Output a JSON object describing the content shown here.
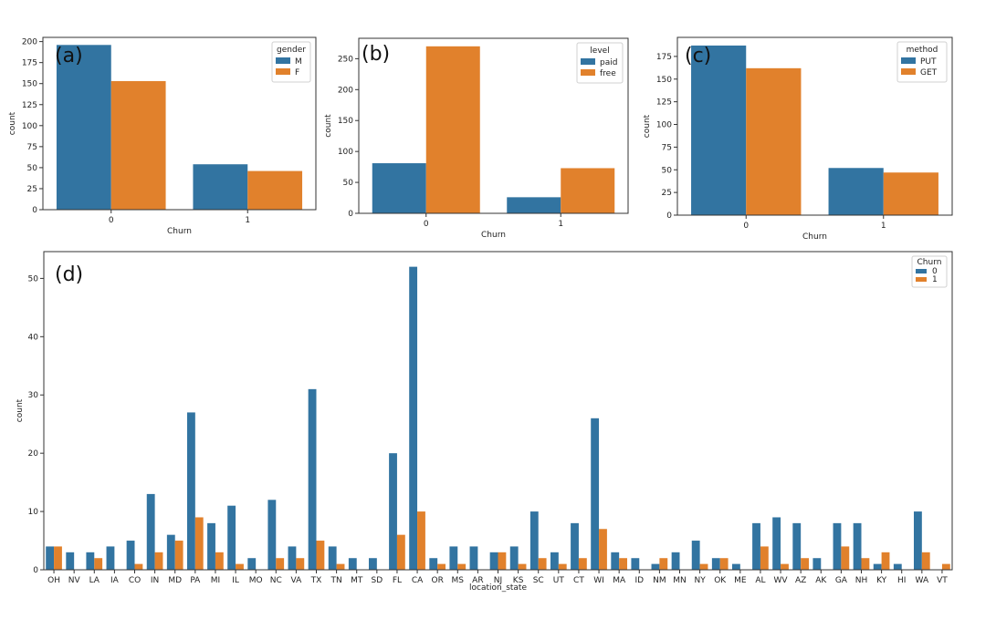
{
  "colors": {
    "blue": "#3274a1",
    "orange": "#e1812c"
  },
  "charts": {
    "a": {
      "tag": "(a)",
      "chart_data": {
        "type": "bar",
        "categories": [
          "0",
          "1"
        ],
        "series": [
          {
            "name": "M",
            "values": [
              196,
              54
            ]
          },
          {
            "name": "F",
            "values": [
              153,
              46
            ]
          }
        ],
        "legend_title": "gender",
        "legend_position": "top-right",
        "xlabel": "Churn",
        "ylabel": "count",
        "ylim": [
          0,
          205
        ],
        "yticks": [
          0,
          25,
          50,
          75,
          100,
          125,
          150,
          175,
          200
        ]
      }
    },
    "b": {
      "tag": "(b)",
      "chart_data": {
        "type": "bar",
        "categories": [
          "0",
          "1"
        ],
        "series": [
          {
            "name": "paid",
            "values": [
              81,
              26
            ]
          },
          {
            "name": "free",
            "values": [
              270,
              73
            ]
          }
        ],
        "legend_title": "level",
        "legend_position": "top-right",
        "xlabel": "Churn",
        "ylabel": "count",
        "ylim": [
          0,
          283
        ],
        "yticks": [
          0,
          50,
          100,
          150,
          200,
          250
        ]
      }
    },
    "c": {
      "tag": "(c)",
      "chart_data": {
        "type": "bar",
        "categories": [
          "0",
          "1"
        ],
        "series": [
          {
            "name": "PUT",
            "values": [
              187,
              52
            ]
          },
          {
            "name": "GET",
            "values": [
              162,
              47
            ]
          }
        ],
        "legend_title": "method",
        "legend_position": "top-right",
        "xlabel": "Churn",
        "ylabel": "count",
        "ylim": [
          0,
          196
        ],
        "yticks": [
          0,
          25,
          50,
          75,
          100,
          125,
          150,
          175
        ]
      }
    },
    "d": {
      "tag": "(d)",
      "chart_data": {
        "type": "bar",
        "categories": [
          "OH",
          "NV",
          "LA",
          "IA",
          "CO",
          "IN",
          "MD",
          "PA",
          "MI",
          "IL",
          "MO",
          "NC",
          "VA",
          "TX",
          "TN",
          "MT",
          "SD",
          "FL",
          "CA",
          "OR",
          "MS",
          "AR",
          "NJ",
          "KS",
          "SC",
          "UT",
          "CT",
          "WI",
          "MA",
          "ID",
          "NM",
          "MN",
          "NY",
          "OK",
          "ME",
          "AL",
          "WV",
          "AZ",
          "AK",
          "GA",
          "NH",
          "KY",
          "HI",
          "WA",
          "VT"
        ],
        "series": [
          {
            "name": "0",
            "values": [
              4,
              3,
              3,
              4,
              5,
              13,
              6,
              27,
              8,
              11,
              2,
              12,
              4,
              31,
              4,
              2,
              2,
              20,
              52,
              2,
              4,
              4,
              3,
              4,
              10,
              3,
              8,
              26,
              3,
              2,
              1,
              3,
              5,
              2,
              1,
              8,
              9,
              8,
              2,
              8,
              8,
              1,
              1,
              10,
              0
            ]
          },
          {
            "name": "1",
            "values": [
              4,
              0,
              2,
              0,
              1,
              3,
              5,
              9,
              3,
              1,
              0,
              2,
              2,
              5,
              1,
              0,
              0,
              6,
              10,
              1,
              1,
              0,
              3,
              1,
              2,
              1,
              2,
              7,
              2,
              0,
              2,
              0,
              1,
              2,
              0,
              4,
              1,
              2,
              0,
              4,
              2,
              3,
              0,
              3,
              1
            ]
          }
        ],
        "legend_title": "Churn",
        "legend_position": "top-right",
        "xlabel": "location_state",
        "ylabel": "count",
        "ylim": [
          0,
          54.6
        ],
        "yticks": [
          0,
          10,
          20,
          30,
          40,
          50
        ]
      }
    }
  }
}
